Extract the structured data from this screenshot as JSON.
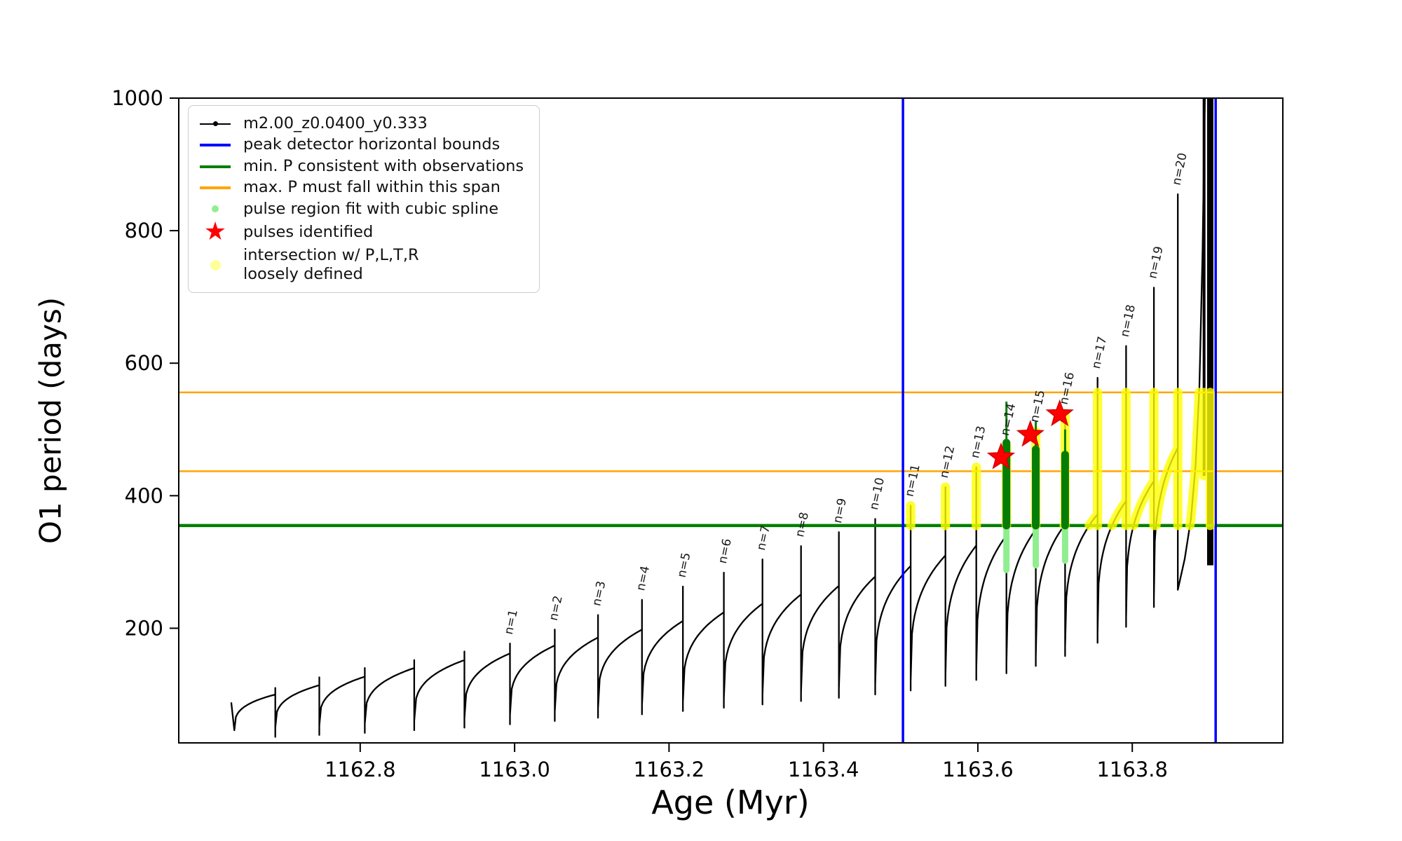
{
  "legend": {
    "entries": [
      {
        "label": "m2.00_z0.0400_y0.333",
        "marker": "line-dot",
        "color": "#000000"
      },
      {
        "label": "peak detector horizontal bounds",
        "marker": "line",
        "color": "#0000ff"
      },
      {
        "label": "min. P consistent with observations",
        "marker": "line",
        "color": "#007f00"
      },
      {
        "label": "max. P must fall within this span",
        "marker": "line",
        "color": "#ffa500"
      },
      {
        "label": "pulse region fit with cubic spline",
        "marker": "dot",
        "color": "#90ee90",
        "size": 10
      },
      {
        "label": "pulses identified",
        "marker": "star",
        "color": "#ff0000"
      },
      {
        "label": "intersection w/ P,L,T,R\nloosely defined",
        "marker": "dot",
        "color": "#ffff99",
        "size": 15
      }
    ]
  },
  "chart_data": {
    "type": "line",
    "title": "",
    "xlabel": "Age (Myr)",
    "ylabel": "O1 period (days)",
    "series_name": "m2.00_z0.0400_y0.333",
    "xlim": [
      1162.565,
      1163.995
    ],
    "ylim": [
      27,
      1000
    ],
    "x_ticks": [
      {
        "v": 1162.8,
        "label": "1162.8"
      },
      {
        "v": 1163.0,
        "label": "1163.0"
      },
      {
        "v": 1163.2,
        "label": "1163.2"
      },
      {
        "v": 1163.4,
        "label": "1163.4"
      },
      {
        "v": 1163.6,
        "label": "1163.6"
      },
      {
        "v": 1163.8,
        "label": "1163.8"
      }
    ],
    "y_ticks": [
      {
        "v": 200,
        "label": "200"
      },
      {
        "v": 400,
        "label": "400"
      },
      {
        "v": 600,
        "label": "600"
      },
      {
        "v": 800,
        "label": "800"
      },
      {
        "v": 1000,
        "label": "1000"
      }
    ],
    "colors": {
      "curve": "#000000",
      "bounds": "#0000ff",
      "min_p": "#007f00",
      "max_p": "#ffa500",
      "spline_dot": "#90ee90",
      "spline_bar": "#067d06",
      "pulse_star": "#ff0000",
      "intersection": "#ffff00"
    },
    "vlines": [
      1163.503,
      1163.908
    ],
    "hline_min_p": 355,
    "hlines_max_p": [
      437,
      556
    ],
    "yellow_region": {
      "x0": 1163.503,
      "x1": 1163.912,
      "y0": 355,
      "y1": 556
    },
    "lead_in": [
      [
        1162.633,
        88
      ],
      [
        1162.637,
        46
      ]
    ],
    "pulses": [
      {
        "n": null,
        "x0": 1162.637,
        "x1": 1162.69,
        "y0": 46,
        "arch": 100,
        "spike": 110
      },
      {
        "n": null,
        "x0": 1162.69,
        "x1": 1162.747,
        "y0": 50,
        "arch": 114,
        "spike": 126
      },
      {
        "n": null,
        "x0": 1162.747,
        "x1": 1162.806,
        "y0": 53,
        "arch": 127,
        "spike": 140
      },
      {
        "n": null,
        "x0": 1162.806,
        "x1": 1162.87,
        "y0": 56,
        "arch": 140,
        "spike": 152
      },
      {
        "n": null,
        "x0": 1162.87,
        "x1": 1162.935,
        "y0": 60,
        "arch": 152,
        "spike": 165
      },
      {
        "n": 1,
        "x0": 1162.935,
        "x1": 1162.994,
        "y0": 64,
        "arch": 162,
        "spike": 177
      },
      {
        "n": 2,
        "x0": 1162.994,
        "x1": 1163.052,
        "y0": 69,
        "arch": 174,
        "spike": 198
      },
      {
        "n": 3,
        "x0": 1163.052,
        "x1": 1163.108,
        "y0": 74,
        "arch": 186,
        "spike": 220
      },
      {
        "n": 4,
        "x0": 1163.108,
        "x1": 1163.165,
        "y0": 79,
        "arch": 198,
        "spike": 243
      },
      {
        "n": 5,
        "x0": 1163.165,
        "x1": 1163.218,
        "y0": 84,
        "arch": 211,
        "spike": 263
      },
      {
        "n": 6,
        "x0": 1163.218,
        "x1": 1163.271,
        "y0": 89,
        "arch": 224,
        "spike": 284
      },
      {
        "n": 7,
        "x0": 1163.271,
        "x1": 1163.321,
        "y0": 94,
        "arch": 237,
        "spike": 304
      },
      {
        "n": 8,
        "x0": 1163.321,
        "x1": 1163.371,
        "y0": 99,
        "arch": 251,
        "spike": 324
      },
      {
        "n": 9,
        "x0": 1163.371,
        "x1": 1163.42,
        "y0": 104,
        "arch": 264,
        "spike": 345
      },
      {
        "n": 10,
        "x0": 1163.42,
        "x1": 1163.467,
        "y0": 109,
        "arch": 278,
        "spike": 365
      },
      {
        "n": 11,
        "x0": 1163.467,
        "x1": 1163.513,
        "y0": 114,
        "arch": 294,
        "spike": 385
      },
      {
        "n": 12,
        "x0": 1163.513,
        "x1": 1163.558,
        "y0": 120,
        "arch": 310,
        "spike": 413
      },
      {
        "n": 13,
        "x0": 1163.558,
        "x1": 1163.598,
        "y0": 127,
        "arch": 325,
        "spike": 443
      },
      {
        "n": 14,
        "x0": 1163.598,
        "x1": 1163.637,
        "y0": 136,
        "arch": 340,
        "spike": 477
      },
      {
        "n": 15,
        "x0": 1163.637,
        "x1": 1163.675,
        "y0": 146,
        "arch": 349,
        "spike": 497
      },
      {
        "n": 16,
        "x0": 1163.675,
        "x1": 1163.713,
        "y0": 157,
        "arch": 357,
        "spike": 524
      },
      {
        "n": 17,
        "x0": 1163.713,
        "x1": 1163.755,
        "y0": 172,
        "arch": 372,
        "spike": 578
      },
      {
        "n": 18,
        "x0": 1163.755,
        "x1": 1163.792,
        "y0": 192,
        "arch": 392,
        "spike": 626
      },
      {
        "n": 19,
        "x0": 1163.792,
        "x1": 1163.828,
        "y0": 216,
        "arch": 422,
        "spike": 714
      },
      {
        "n": 20,
        "x0": 1163.828,
        "x1": 1163.859,
        "y0": 246,
        "arch": 472,
        "spike": 855
      }
    ],
    "final_rise": [
      [
        1163.859,
        258
      ],
      [
        1163.868,
        305
      ],
      [
        1163.876,
        365
      ],
      [
        1163.882,
        445
      ],
      [
        1163.887,
        565
      ],
      [
        1163.891,
        770
      ],
      [
        1163.894,
        1000
      ]
    ],
    "extra_verticals": [
      {
        "x": 1163.893,
        "y0": 430,
        "y1": 1000,
        "w": 4
      },
      {
        "x": 1163.901,
        "y0": 295,
        "y1": 1000,
        "w": 9
      }
    ],
    "green_bars": [
      {
        "x": 1163.637,
        "light0": 288,
        "bar0": 355,
        "bar1": 480,
        "thin1": 542
      },
      {
        "x": 1163.675,
        "light0": 295,
        "bar0": 355,
        "bar1": 470,
        "thin1": 512
      },
      {
        "x": 1163.713,
        "light0": 302,
        "bar0": 355,
        "bar1": 462,
        "thin1": 500
      }
    ],
    "stars": [
      [
        1163.63,
        458
      ],
      [
        1163.668,
        492
      ],
      [
        1163.706,
        523
      ]
    ]
  }
}
